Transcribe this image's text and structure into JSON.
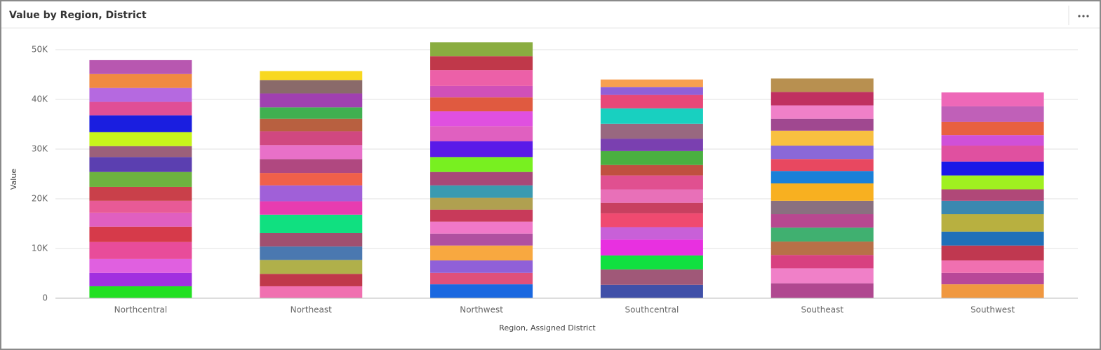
{
  "chart_data": {
    "type": "stacked_bar",
    "title": "Value by Region, District",
    "x_label": "Region, Assigned District",
    "y_label": "Value",
    "categories": [
      "Northcentral",
      "Northeast",
      "Northwest",
      "Southcentral",
      "Southeast",
      "Southwest"
    ],
    "stacks": [
      {
        "values": [
          2400,
          2700,
          2800,
          3400,
          3100,
          2800,
          2400,
          2800,
          3000,
          3000,
          2200,
          2800,
          3400,
          2700,
          2800,
          2800,
          2800
        ],
        "colors": [
          "#22e022",
          "#a12fe0",
          "#e060e0",
          "#e84c9a",
          "#d63a4a",
          "#e05fc0",
          "#e85a96",
          "#c9404a",
          "#6db33f",
          "#5b3fb0",
          "#9b607a",
          "#c8f51a",
          "#1a1ee0",
          "#e04e96",
          "#b569e0",
          "#f08a40",
          "#b857b0"
        ]
      },
      {
        "values": [
          2400,
          2500,
          2800,
          2700,
          2700,
          3700,
          2700,
          3200,
          2500,
          2800,
          2800,
          2800,
          2500,
          2300,
          2800,
          2700,
          1800
        ],
        "colors": [
          "#f070b0",
          "#c0384a",
          "#b0b04a",
          "#4a78b0",
          "#a05070",
          "#10e080",
          "#e83cb0",
          "#a060d8",
          "#f0604a",
          "#b04880",
          "#e870c8",
          "#d04880",
          "#b86040",
          "#40b050",
          "#a040b0",
          "#8a6a6a",
          "#f8d820"
        ]
      },
      {
        "values": [
          2800,
          2300,
          2500,
          3000,
          2400,
          2400,
          2400,
          2400,
          2500,
          2700,
          3000,
          3200,
          3000,
          3000,
          2800,
          2300,
          3200,
          2800,
          2800
        ],
        "colors": [
          "#1a68e0",
          "#e0507a",
          "#9060d8",
          "#f8a840",
          "#b050a0",
          "#f078c8",
          "#c83a5a",
          "#b0a050",
          "#3a9ab0",
          "#a84878",
          "#78f020",
          "#5a1ae8",
          "#e060c0",
          "#e050e0",
          "#e05a40",
          "#d050b8",
          "#ec60a8",
          "#c0384a",
          "#8aad40"
        ]
      },
      {
        "values": [
          2700,
          3100,
          2800,
          3200,
          2500,
          2800,
          2100,
          2700,
          2800,
          2100,
          2800,
          2500,
          3000,
          3100,
          2700,
          1600,
          1500
        ],
        "colors": [
          "#4050a8",
          "#a05878",
          "#10e040",
          "#e830e0",
          "#c860d8",
          "#f04a70",
          "#c84060",
          "#e870b8",
          "#e05090",
          "#c05040",
          "#4ab040",
          "#7a40b0",
          "#986880",
          "#18d0c0",
          "#e84878",
          "#9060d8",
          "#f8a050"
        ]
      },
      {
        "values": [
          3000,
          3000,
          2700,
          2700,
          2800,
          2700,
          2700,
          3500,
          2500,
          2400,
          2700,
          3000,
          2400,
          2700,
          2700,
          2700
        ],
        "colors": [
          "#b04890",
          "#f080c8",
          "#d84080",
          "#b87048",
          "#40b070",
          "#b84890",
          "#8a7080",
          "#f8b020",
          "#1a80d8",
          "#e84860",
          "#8a68d8",
          "#f8c040",
          "#a04890",
          "#f080c8",
          "#c03060",
          "#b89050"
        ]
      },
      {
        "values": [
          2800,
          2300,
          2500,
          3000,
          2800,
          3500,
          2700,
          2300,
          2800,
          2800,
          3200,
          2100,
          2700,
          3100,
          2800
        ],
        "colors": [
          "#f09840",
          "#b84898",
          "#f070b0",
          "#c03850",
          "#2070b8",
          "#b8b040",
          "#3a88b0",
          "#b04878",
          "#a0f020",
          "#1a18e8",
          "#e050a0",
          "#d050d8",
          "#e86040",
          "#c060b8",
          "#ee68b8"
        ]
      }
    ],
    "ylim": [
      0,
      50000
    ],
    "yticks": [
      0,
      {
        "value": 10000,
        "label": "10K"
      },
      {
        "value": 20000,
        "label": "20K"
      },
      {
        "value": 30000,
        "label": "30K"
      },
      {
        "value": 40000,
        "label": "40K"
      },
      {
        "value": 50000,
        "label": "50K"
      }
    ],
    "grid": true
  }
}
